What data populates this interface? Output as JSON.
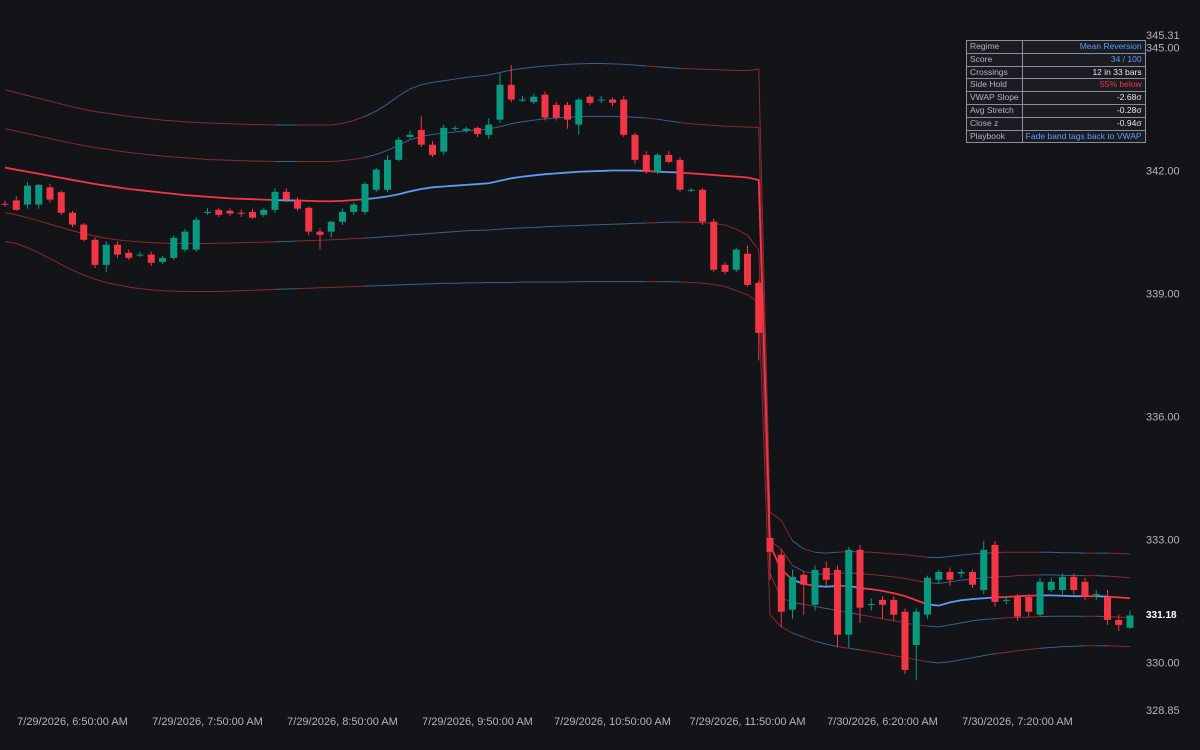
{
  "chart_data": {
    "type": "candlestick",
    "categories": [
      null,
      null,
      null,
      null,
      null,
      null,
      "7/29/2026, 6:50:00 AM",
      null,
      null,
      null,
      null,
      null,
      null,
      null,
      null,
      null,
      null,
      null,
      "7/29/2026, 7:50:00 AM",
      null,
      null,
      null,
      null,
      null,
      null,
      null,
      null,
      null,
      null,
      null,
      "7/29/2026, 8:50:00 AM",
      null,
      null,
      null,
      null,
      null,
      null,
      null,
      null,
      null,
      null,
      null,
      "7/29/2026, 9:50:00 AM",
      null,
      null,
      null,
      null,
      null,
      null,
      null,
      null,
      null,
      null,
      null,
      "7/29/2026, 10:50:00 AM",
      null,
      null,
      null,
      null,
      null,
      null,
      null,
      null,
      null,
      null,
      null,
      "7/29/2026, 11:50:00 AM",
      null,
      null,
      null,
      null,
      null,
      null,
      null,
      null,
      null,
      null,
      null,
      "7/30/2026, 6:20:00 AM",
      null,
      null,
      null,
      null,
      null,
      null,
      null,
      null,
      null,
      null,
      null,
      "7/30/2026, 7:20:00 AM",
      null,
      null,
      null,
      null,
      null,
      null,
      null,
      null,
      null,
      null
    ],
    "open": [
      341.22,
      341.3,
      341.2,
      341.2,
      341.62,
      341.5,
      341.0,
      340.71,
      340.34,
      339.73,
      340.22,
      340.02,
      339.98,
      339.98,
      339.8,
      339.9,
      340.1,
      340.1,
      341.02,
      341.07,
      341.05,
      341.0,
      341.02,
      340.95,
      341.07,
      341.51,
      341.32,
      341.12,
      340.54,
      340.54,
      340.78,
      341.02,
      341.02,
      341.56,
      341.56,
      342.29,
      342.85,
      343.02,
      342.66,
      342.49,
      343.05,
      343.0,
      343.07,
      342.9,
      343.27,
      344.12,
      343.76,
      343.7,
      343.88,
      343.63,
      343.63,
      343.15,
      343.83,
      343.76,
      343.76,
      343.76,
      342.9,
      342.41,
      342.0,
      342.41,
      342.29,
      341.56,
      341.56,
      340.78,
      339.73,
      339.61,
      340.0,
      339.29,
      333.07,
      332.66,
      331.32,
      332.17,
      331.44,
      332.34,
      332.29,
      330.71,
      332.78,
      331.46,
      331.56,
      331.56,
      331.27,
      330.46,
      331.2,
      332.05,
      332.24,
      332.2,
      332.24,
      331.8,
      332.9,
      331.56,
      331.63,
      331.63,
      331.2,
      331.8,
      331.8,
      332.12,
      332.0,
      331.7,
      331.63,
      331.07,
      330.88
    ],
    "high": [
      341.3,
      341.4,
      341.75,
      341.7,
      341.7,
      341.55,
      341.05,
      340.75,
      340.4,
      340.3,
      340.3,
      340.1,
      340.05,
      340.05,
      339.95,
      340.45,
      340.6,
      340.9,
      341.12,
      341.12,
      341.1,
      341.08,
      341.1,
      341.12,
      341.6,
      341.6,
      341.38,
      341.15,
      340.62,
      340.8,
      341.1,
      341.25,
      341.75,
      342.1,
      342.4,
      342.85,
      343.0,
      343.35,
      342.75,
      343.15,
      343.12,
      343.1,
      343.1,
      343.3,
      344.4,
      344.6,
      343.85,
      343.9,
      343.95,
      343.7,
      343.7,
      343.8,
      343.88,
      343.85,
      343.8,
      343.85,
      342.95,
      342.5,
      342.45,
      342.5,
      342.35,
      341.6,
      341.6,
      340.85,
      339.8,
      340.15,
      340.2,
      339.35,
      333.1,
      332.8,
      332.3,
      332.25,
      332.4,
      332.5,
      332.4,
      332.85,
      332.9,
      331.6,
      331.65,
      331.65,
      331.35,
      331.35,
      332.15,
      332.3,
      332.35,
      332.3,
      332.3,
      333.0,
      333.0,
      331.65,
      331.7,
      331.7,
      332.1,
      332.1,
      332.2,
      332.2,
      332.1,
      331.8,
      331.8,
      331.2,
      331.3
    ],
    "low": [
      341.15,
      341.05,
      341.1,
      341.1,
      341.25,
      340.95,
      340.65,
      340.3,
      339.65,
      339.55,
      339.9,
      339.85,
      339.92,
      339.7,
      339.75,
      339.85,
      340.05,
      340.05,
      340.95,
      340.9,
      340.92,
      340.9,
      340.85,
      340.9,
      341.0,
      341.25,
      341.05,
      340.45,
      340.1,
      340.4,
      340.7,
      340.95,
      340.95,
      341.5,
      341.5,
      342.25,
      342.8,
      342.6,
      342.35,
      342.4,
      343.0,
      342.95,
      342.85,
      342.8,
      343.2,
      343.7,
      343.7,
      343.65,
      343.25,
      343.25,
      343.05,
      342.9,
      343.62,
      343.68,
      343.6,
      342.85,
      342.2,
      341.95,
      341.95,
      342.2,
      341.5,
      341.5,
      340.7,
      339.55,
      339.5,
      339.55,
      339.2,
      337.4,
      332.05,
      330.9,
      331.1,
      331.2,
      331.3,
      331.9,
      330.4,
      330.4,
      331.0,
      331.3,
      331.1,
      331.05,
      329.75,
      329.6,
      331.1,
      331.95,
      331.9,
      332.1,
      331.85,
      331.7,
      331.4,
      331.45,
      331.05,
      331.15,
      331.15,
      331.75,
      331.7,
      331.7,
      331.55,
      331.55,
      330.95,
      330.8,
      330.85
    ],
    "close": [
      341.2,
      341.07,
      341.66,
      341.68,
      341.32,
      341.0,
      340.71,
      340.34,
      339.73,
      340.22,
      339.98,
      339.9,
      339.98,
      339.78,
      339.9,
      340.39,
      340.54,
      340.83,
      341.02,
      340.95,
      340.98,
      340.98,
      340.88,
      341.07,
      341.51,
      341.32,
      341.1,
      340.54,
      340.46,
      340.78,
      341.02,
      341.2,
      341.7,
      342.05,
      342.29,
      342.78,
      342.9,
      342.66,
      342.41,
      343.07,
      343.07,
      343.05,
      342.92,
      343.15,
      344.12,
      343.76,
      343.76,
      343.83,
      343.32,
      343.32,
      343.27,
      343.76,
      343.68,
      343.76,
      343.68,
      342.9,
      342.29,
      342.0,
      342.41,
      342.24,
      341.56,
      341.56,
      340.78,
      339.61,
      339.56,
      340.1,
      339.24,
      338.07,
      332.73,
      331.27,
      332.12,
      331.93,
      332.29,
      332.05,
      330.71,
      332.78,
      331.37,
      331.46,
      331.44,
      331.2,
      329.85,
      331.27,
      332.1,
      332.24,
      332.05,
      332.24,
      331.93,
      332.78,
      331.51,
      331.56,
      331.15,
      331.27,
      332.0,
      332.0,
      332.12,
      331.8,
      331.63,
      331.7,
      331.07,
      330.95,
      331.18
    ],
    "up_color": "#089981",
    "down_color": "#f23645",
    "overlays": [
      {
        "color": "#5b9cf6",
        "below_color": "#f23645",
        "width": 1.8,
        "opacity": 1,
        "values": [
          342.1,
          342.05,
          342.0,
          341.95,
          341.9,
          341.85,
          341.8,
          341.75,
          341.7,
          341.66,
          341.62,
          341.58,
          341.55,
          341.52,
          341.49,
          341.46,
          341.43,
          341.41,
          341.39,
          341.37,
          341.35,
          341.34,
          341.33,
          341.32,
          341.31,
          341.3,
          341.3,
          341.29,
          341.28,
          341.28,
          341.29,
          341.31,
          341.33,
          341.36,
          341.4,
          341.45,
          341.52,
          341.58,
          341.62,
          341.64,
          341.66,
          341.68,
          341.7,
          341.72,
          341.78,
          341.84,
          341.88,
          341.91,
          341.94,
          341.96,
          341.98,
          342.0,
          342.01,
          342.02,
          342.03,
          342.03,
          342.03,
          342.02,
          342.0,
          341.99,
          341.98,
          341.96,
          341.94,
          341.92,
          341.9,
          341.88,
          341.86,
          341.8,
          332.9,
          332.3,
          332.05,
          331.95,
          331.9,
          331.88,
          331.9,
          331.9,
          331.85,
          331.82,
          331.78,
          331.72,
          331.65,
          331.55,
          331.45,
          331.42,
          331.5,
          331.55,
          331.58,
          331.6,
          331.62,
          331.63,
          331.65,
          331.66,
          331.67,
          331.67,
          331.66,
          331.65,
          331.65,
          331.65,
          331.64,
          331.62,
          331.6
        ]
      },
      {
        "color": "#5b9cf6",
        "below_color": "#f23645",
        "width": 1,
        "opacity": 0.55,
        "values": [
          343.05,
          342.99,
          342.93,
          342.87,
          342.81,
          342.75,
          342.69,
          342.64,
          342.59,
          342.55,
          342.51,
          342.47,
          342.44,
          342.41,
          342.38,
          342.36,
          342.34,
          342.32,
          342.3,
          342.29,
          342.28,
          342.27,
          342.26,
          342.26,
          342.25,
          342.25,
          342.25,
          342.25,
          342.25,
          342.25,
          342.27,
          342.3,
          342.35,
          342.42,
          342.52,
          342.65,
          342.78,
          342.86,
          342.91,
          342.94,
          342.97,
          343.0,
          343.02,
          343.04,
          343.1,
          343.17,
          343.22,
          343.26,
          343.29,
          343.31,
          343.33,
          343.34,
          343.35,
          343.35,
          343.35,
          343.34,
          343.33,
          343.31,
          343.28,
          343.24,
          343.2,
          343.17,
          343.15,
          343.13,
          343.11,
          343.1,
          343.09,
          343.08,
          333.0,
          332.8,
          332.4,
          332.25,
          332.2,
          332.18,
          332.2,
          332.22,
          332.2,
          332.18,
          332.15,
          332.12,
          332.08,
          332.03,
          331.98,
          331.96,
          332.0,
          332.04,
          332.07,
          332.1,
          332.12,
          332.13,
          332.15,
          332.16,
          332.17,
          332.17,
          332.16,
          332.15,
          332.15,
          332.15,
          332.14,
          332.12,
          332.1
        ]
      },
      {
        "color": "#5b9cf6",
        "below_color": "#f23645",
        "width": 1,
        "opacity": 0.55,
        "values": [
          344.0,
          343.93,
          343.86,
          343.79,
          343.72,
          343.65,
          343.58,
          343.52,
          343.47,
          343.43,
          343.39,
          343.35,
          343.32,
          343.29,
          343.26,
          343.24,
          343.22,
          343.2,
          343.19,
          343.18,
          343.17,
          343.16,
          343.15,
          343.15,
          343.14,
          343.14,
          343.14,
          343.14,
          343.14,
          343.14,
          343.18,
          343.25,
          343.35,
          343.48,
          343.65,
          343.85,
          344.02,
          344.12,
          344.18,
          344.22,
          344.26,
          344.3,
          344.33,
          344.36,
          344.42,
          344.48,
          344.52,
          344.55,
          344.58,
          344.6,
          344.62,
          344.63,
          344.64,
          344.64,
          344.63,
          344.62,
          344.6,
          344.58,
          344.56,
          344.54,
          344.52,
          344.51,
          344.5,
          344.49,
          344.48,
          344.47,
          344.47,
          344.5,
          333.7,
          333.5,
          333.0,
          332.8,
          332.72,
          332.7,
          332.72,
          332.74,
          332.73,
          332.72,
          332.7,
          332.68,
          332.66,
          332.63,
          332.6,
          332.59,
          332.62,
          332.65,
          332.68,
          332.7,
          332.71,
          332.72,
          332.72,
          332.72,
          332.72,
          332.72,
          332.71,
          332.71,
          332.7,
          332.7,
          332.7,
          332.69,
          332.68
        ]
      },
      {
        "color": "#5b9cf6",
        "below_color": "#f23645",
        "width": 1,
        "opacity": 0.55,
        "values": [
          341.0,
          340.95,
          340.88,
          340.8,
          340.72,
          340.64,
          340.56,
          340.49,
          340.43,
          340.38,
          340.34,
          340.31,
          340.29,
          340.27,
          340.26,
          340.25,
          340.25,
          340.25,
          340.25,
          340.26,
          340.26,
          340.27,
          340.28,
          340.28,
          340.29,
          340.3,
          340.31,
          340.32,
          340.33,
          340.34,
          340.35,
          340.37,
          340.38,
          340.4,
          340.42,
          340.44,
          340.46,
          340.48,
          340.5,
          340.52,
          340.54,
          340.56,
          340.57,
          340.58,
          340.6,
          340.62,
          340.63,
          340.64,
          340.66,
          340.67,
          340.68,
          340.69,
          340.7,
          340.71,
          340.72,
          340.73,
          340.74,
          340.75,
          340.76,
          340.77,
          340.77,
          340.77,
          340.76,
          340.74,
          340.7,
          340.6,
          340.45,
          340.1,
          332.2,
          331.6,
          331.5,
          331.45,
          331.4,
          331.35,
          331.3,
          331.25,
          331.2,
          331.15,
          331.1,
          331.05,
          331.0,
          330.95,
          330.92,
          330.9,
          330.95,
          331.0,
          331.05,
          331.08,
          331.1,
          331.12,
          331.13,
          331.14,
          331.15,
          331.16,
          331.16,
          331.16,
          331.16,
          331.16,
          331.15,
          331.14,
          331.13
        ]
      },
      {
        "color": "#5b9cf6",
        "below_color": "#f23645",
        "width": 1,
        "opacity": 0.55,
        "values": [
          340.3,
          340.25,
          340.15,
          340.02,
          339.88,
          339.74,
          339.6,
          339.48,
          339.38,
          339.3,
          339.24,
          339.19,
          339.15,
          339.12,
          339.1,
          339.09,
          339.08,
          339.08,
          339.08,
          339.08,
          339.09,
          339.1,
          339.11,
          339.12,
          339.13,
          339.14,
          339.15,
          339.16,
          339.17,
          339.18,
          339.19,
          339.2,
          339.21,
          339.22,
          339.23,
          339.24,
          339.25,
          339.26,
          339.27,
          339.28,
          339.28,
          339.29,
          339.29,
          339.3,
          339.3,
          339.3,
          339.31,
          339.31,
          339.31,
          339.31,
          339.31,
          339.32,
          339.32,
          339.32,
          339.32,
          339.32,
          339.32,
          339.32,
          339.32,
          339.32,
          339.31,
          339.3,
          339.28,
          339.25,
          339.2,
          339.1,
          339.0,
          338.8,
          331.2,
          330.9,
          330.75,
          330.65,
          330.55,
          330.48,
          330.42,
          330.38,
          330.34,
          330.3,
          330.25,
          330.2,
          330.15,
          330.1,
          330.05,
          330.02,
          330.05,
          330.1,
          330.15,
          330.2,
          330.25,
          330.28,
          330.32,
          330.35,
          330.38,
          330.4,
          330.42,
          330.43,
          330.44,
          330.44,
          330.44,
          330.43,
          330.42
        ]
      }
    ],
    "ylim": [
      328.85,
      345.31
    ],
    "yticks": [
      {
        "value": 345,
        "label": "345.00"
      },
      {
        "value": 342,
        "label": "342.00"
      },
      {
        "value": 339,
        "label": "339.00"
      },
      {
        "value": 336,
        "label": "336.00"
      },
      {
        "value": 333,
        "label": "333.00"
      },
      {
        "value": 330,
        "label": "330.00"
      }
    ],
    "grid": false,
    "panel": {
      "rows": [
        {
          "label": "Regime",
          "value": "Mean Reversion",
          "color": "#5b9cf6"
        },
        {
          "label": "Score",
          "value": "34 / 100",
          "color": "#5b9cf6"
        },
        {
          "label": "Crossings",
          "value": "12 in 33 bars",
          "color": "#e6e7ea"
        },
        {
          "label": "Side Hold",
          "value": "55% below",
          "color": "#f23645"
        },
        {
          "label": "VWAP Slope",
          "value": "-2.68σ",
          "color": "#e6e7ea"
        },
        {
          "label": "Avg Stretch",
          "value": "-0.28σ",
          "color": "#e6e7ea"
        },
        {
          "label": "Close z",
          "value": "-0.94σ",
          "color": "#e6e7ea"
        },
        {
          "label": "Playbook",
          "value": "Fade band tags back to VWAP",
          "color": "#5b9cf6"
        }
      ]
    }
  }
}
